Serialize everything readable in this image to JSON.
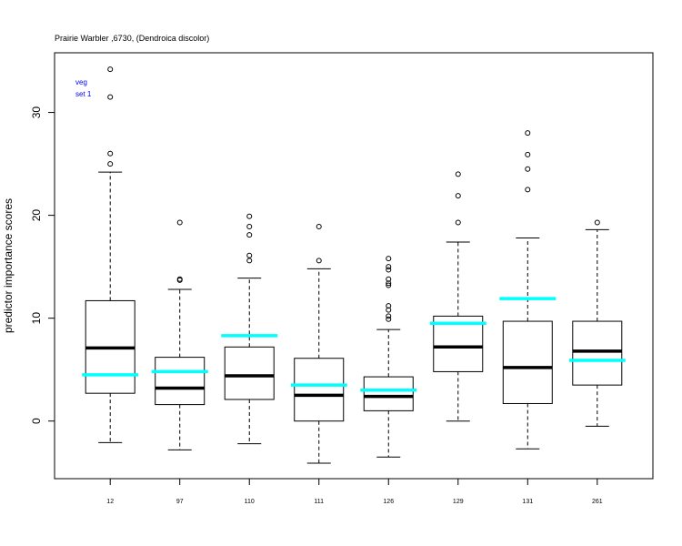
{
  "chart_data": {
    "type": "box",
    "title": "Prairie Warbler ,6730, (Dendroica discolor)",
    "xlabel": "",
    "ylabel": "predictor importance scores",
    "ylim": [
      -5.6,
      35.8
    ],
    "xlim": [
      0.2,
      8.8
    ],
    "yticks": [
      0,
      10,
      20,
      30
    ],
    "grid": false,
    "legend": {
      "position": "top-left",
      "entries": [
        "veg",
        "set 1"
      ],
      "color": "#0000ff"
    },
    "categories": [
      "12",
      "97",
      "110",
      "111",
      "126",
      "129",
      "131",
      "261"
    ],
    "boxes": [
      {
        "whisker_low": -2.1,
        "q1": 2.7,
        "median": 7.1,
        "q3": 11.7,
        "whisker_high": 24.2,
        "outliers": [
          25.0,
          26.0,
          31.5,
          34.2
        ],
        "reference": 4.5
      },
      {
        "whisker_low": -2.8,
        "q1": 1.6,
        "median": 3.2,
        "q3": 6.2,
        "whisker_high": 12.8,
        "outliers": [
          13.7,
          13.8,
          19.3
        ],
        "reference": 4.8
      },
      {
        "whisker_low": -2.2,
        "q1": 2.1,
        "median": 4.4,
        "q3": 7.2,
        "whisker_high": 13.9,
        "outliers": [
          15.6,
          16.1,
          18.1,
          18.9,
          19.9
        ],
        "reference": 8.3
      },
      {
        "whisker_low": -4.1,
        "q1": 0.0,
        "median": 2.5,
        "q3": 6.1,
        "whisker_high": 14.8,
        "outliers": [
          15.6,
          18.9
        ],
        "reference": 3.5
      },
      {
        "whisker_low": -3.5,
        "q1": 1.0,
        "median": 2.4,
        "q3": 4.3,
        "whisker_high": 8.9,
        "outliers": [
          9.9,
          10.2,
          10.8,
          11.2,
          13.2,
          13.4,
          13.8,
          14.7,
          15.0,
          15.8
        ],
        "reference": 3.0
      },
      {
        "whisker_low": 0.0,
        "q1": 4.8,
        "median": 7.2,
        "q3": 10.2,
        "whisker_high": 17.4,
        "outliers": [
          19.3,
          21.9,
          24.0
        ],
        "reference": 9.5
      },
      {
        "whisker_low": -2.7,
        "q1": 1.7,
        "median": 5.2,
        "q3": 9.7,
        "whisker_high": 17.8,
        "outliers": [
          22.5,
          24.5,
          25.9,
          28.0
        ],
        "reference": 11.9
      },
      {
        "whisker_low": -0.5,
        "q1": 3.5,
        "median": 6.8,
        "q3": 9.7,
        "whisker_high": 18.6,
        "outliers": [
          19.3
        ],
        "reference": 5.9
      }
    ],
    "colors": {
      "box": "#000000",
      "median": "#000000",
      "reference": "#00ffff",
      "legend": "#0000ff"
    }
  }
}
